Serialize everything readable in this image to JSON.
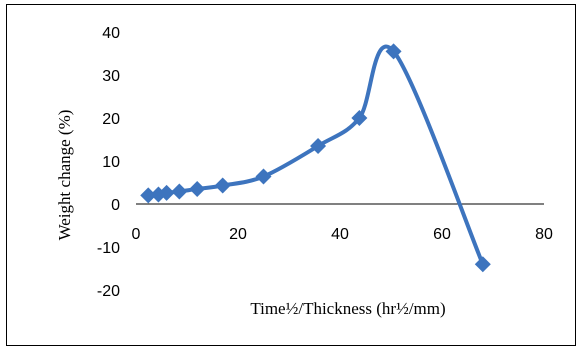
{
  "chart_data": {
    "type": "line",
    "title": "",
    "xlabel": "Time½/Thickness (hr½/mm)",
    "ylabel": "Weight change (%)",
    "xlim": [
      0,
      80
    ],
    "ylim": [
      -20,
      40
    ],
    "x_ticks": [
      "0",
      "20",
      "40",
      "60",
      "80"
    ],
    "y_ticks": [
      "-20",
      "-10",
      "0",
      "10",
      "20",
      "30",
      "40"
    ],
    "grid": false,
    "legend": "none",
    "marker": "diamond",
    "smooth": true,
    "color": "#3d74be",
    "series": [
      {
        "x": [
          2.4,
          4.4,
          6.0,
          8.5,
          12.0,
          17.0,
          25.0,
          35.7,
          43.8,
          50.5,
          68.0
        ],
        "y": [
          2.0,
          2.2,
          2.6,
          2.9,
          3.5,
          4.3,
          6.4,
          13.5,
          20.0,
          35.5,
          -14.0
        ]
      }
    ]
  }
}
